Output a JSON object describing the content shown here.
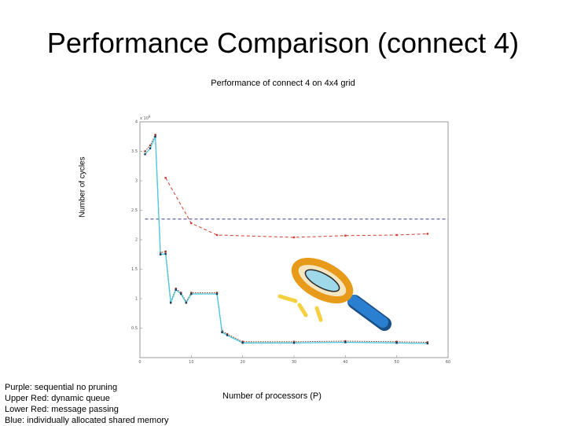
{
  "slide": {
    "title": "Performance Comparison (connect 4)"
  },
  "legend_notes": [
    "Purple: sequential no pruning",
    "Upper Red: dynamic queue",
    "Lower Red: message passing",
    "Blue: individually allocated shared memory"
  ],
  "colors": {
    "purple": "#3b3b8f",
    "red": "#d23a2a",
    "red_dark": "#993322",
    "blue": "#45c8e0",
    "magnifier_rim": "#f0a020",
    "magnifier_handle": "#2a7fd0"
  },
  "icons": {
    "magnifier": "magnifying-glass-icon"
  },
  "chart_data": {
    "type": "line",
    "title": "Performance of connect 4 on 4x4 grid",
    "xlabel": "Number of processors (P)",
    "ylabel": "Number of cycles",
    "xlim": [
      0,
      60
    ],
    "ylim": [
      0,
      4
    ],
    "exponent_label": "x 10",
    "exponent_power": "9",
    "x_ticks": [
      "0",
      "10",
      "20",
      "30",
      "40",
      "50",
      "60"
    ],
    "y_ticks": [
      "0.5",
      "1",
      "1.5",
      "2",
      "2.5",
      "3",
      "3.5",
      "4"
    ],
    "grid": false,
    "series": [
      {
        "color_key": "purple",
        "style": "dashed",
        "x": [
          1,
          60
        ],
        "y": [
          2.35,
          2.35
        ]
      },
      {
        "color_key": "red",
        "style": "dashed",
        "x": [
          5,
          10,
          15,
          30,
          40,
          50,
          56
        ],
        "y": [
          3.05,
          2.28,
          2.08,
          2.04,
          2.07,
          2.08,
          2.1
        ]
      },
      {
        "color_key": "red_dark",
        "style": "dotted",
        "x": [
          1,
          2,
          3,
          4,
          5,
          6,
          7,
          8,
          9,
          10,
          15,
          16,
          17,
          20,
          30,
          40,
          50,
          56
        ],
        "y": [
          3.5,
          3.6,
          3.78,
          1.78,
          1.8,
          0.95,
          1.17,
          1.1,
          0.95,
          1.1,
          1.1,
          0.45,
          0.4,
          0.27,
          0.27,
          0.28,
          0.27,
          0.26
        ]
      },
      {
        "color_key": "blue",
        "style": "solid",
        "x": [
          1,
          2,
          3,
          4,
          5,
          6,
          7,
          8,
          9,
          10,
          15,
          16,
          17,
          20,
          30,
          40,
          50,
          56
        ],
        "y": [
          3.45,
          3.55,
          3.75,
          1.75,
          1.76,
          0.93,
          1.15,
          1.08,
          0.93,
          1.08,
          1.08,
          0.43,
          0.38,
          0.25,
          0.25,
          0.26,
          0.25,
          0.24
        ]
      }
    ]
  }
}
